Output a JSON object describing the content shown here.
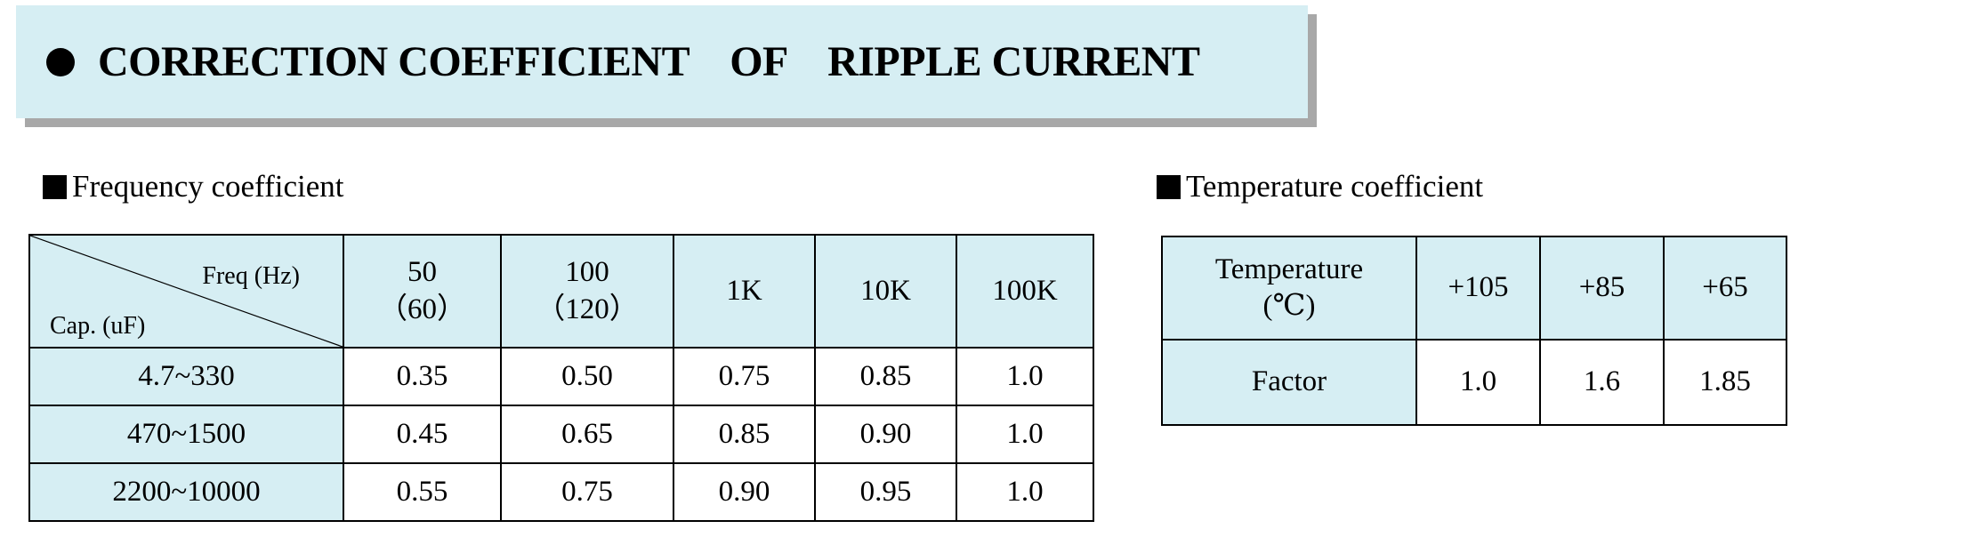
{
  "banner": {
    "title": "CORRECTION COEFFICIENT    OF    RIPPLE CURRENT"
  },
  "frequency": {
    "heading": "Frequency coefficient",
    "corner_top": "Freq (Hz)",
    "corner_bottom": "Cap. (uF)",
    "columns": [
      {
        "line1": "50",
        "line2": "（60）"
      },
      {
        "line1": "100",
        "line2": "（120）"
      },
      {
        "line1": "1K",
        "line2": ""
      },
      {
        "line1": "10K",
        "line2": ""
      },
      {
        "line1": "100K",
        "line2": ""
      }
    ],
    "rows": [
      {
        "label": "4.7~330",
        "values": [
          "0.35",
          "0.50",
          "0.75",
          "0.85",
          "1.0"
        ]
      },
      {
        "label": "470~1500",
        "values": [
          "0.45",
          "0.65",
          "0.85",
          "0.90",
          "1.0"
        ]
      },
      {
        "label": "2200~10000",
        "values": [
          "0.55",
          "0.75",
          "0.90",
          "0.95",
          "1.0"
        ]
      }
    ]
  },
  "temperature": {
    "heading": "Temperature coefficient",
    "header_line1": "Temperature",
    "header_line2": "(℃)",
    "columns": [
      "+105",
      "+85",
      "+65"
    ],
    "row_label": "Factor",
    "values": [
      "1.0",
      "1.6",
      "1.85"
    ]
  },
  "colors": {
    "highlight": "#d6eef3",
    "shadow": "#a8a8a8"
  }
}
